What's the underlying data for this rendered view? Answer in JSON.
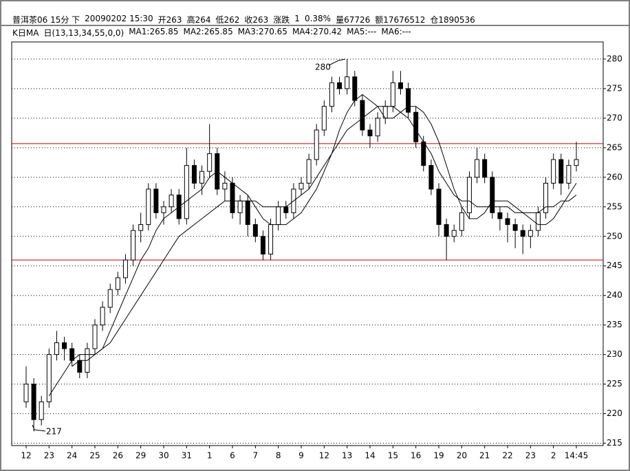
{
  "header": {
    "line1": [
      "普洱茶06 15分 下",
      "20090202 15:30",
      "开263",
      "高264",
      "低262",
      "收263",
      "涨跌",
      "1",
      "0.38%",
      "量67726",
      "额17676512",
      "仓1890536"
    ],
    "line2": [
      "K日MA",
      "日(13,13,34,55,0,0)",
      "MA1:265.85",
      "MA2:265.85",
      "MA3:270.65",
      "MA4:270.42",
      "MA5:---",
      "MA6:---"
    ]
  },
  "chart_data": {
    "type": "candlestick",
    "categories": [
      "12",
      null,
      null,
      "23",
      null,
      null,
      "24",
      null,
      null,
      "25",
      null,
      null,
      "26",
      null,
      null,
      "29",
      null,
      null,
      "30",
      null,
      null,
      "31",
      null,
      null,
      "1",
      null,
      null,
      "6",
      null,
      null,
      "7",
      null,
      null,
      "8",
      null,
      null,
      "9",
      null,
      null,
      "12",
      null,
      null,
      "13",
      null,
      null,
      "14",
      null,
      null,
      "15",
      null,
      null,
      "16",
      null,
      null,
      "19",
      null,
      null,
      "20",
      null,
      null,
      "21",
      null,
      null,
      "22",
      null,
      null,
      "23",
      null,
      null,
      "2",
      null,
      null,
      "14:45"
    ],
    "ohlc": [
      [
        222,
        228,
        221,
        225
      ],
      [
        225,
        226,
        217,
        219
      ],
      [
        219,
        223,
        218,
        222
      ],
      [
        222,
        231,
        221,
        230
      ],
      [
        230,
        234,
        229,
        232
      ],
      [
        232,
        233,
        229,
        231
      ],
      [
        231,
        232,
        228,
        229
      ],
      [
        229,
        230,
        226,
        227
      ],
      [
        227,
        232,
        226,
        231
      ],
      [
        231,
        236,
        230,
        235
      ],
      [
        235,
        239,
        234,
        238
      ],
      [
        238,
        242,
        237,
        241
      ],
      [
        241,
        244,
        240,
        243
      ],
      [
        243,
        247,
        242,
        246
      ],
      [
        246,
        252,
        245,
        251
      ],
      [
        251,
        254,
        249,
        252
      ],
      [
        252,
        259,
        251,
        258
      ],
      [
        258,
        259,
        253,
        254
      ],
      [
        254,
        256,
        252,
        255
      ],
      [
        255,
        258,
        254,
        257
      ],
      [
        257,
        258,
        252,
        253
      ],
      [
        253,
        265,
        252,
        262
      ],
      [
        262,
        263,
        258,
        259
      ],
      [
        259,
        262,
        257,
        261
      ],
      [
        261,
        269,
        260,
        264
      ],
      [
        264,
        265,
        257,
        258
      ],
      [
        258,
        261,
        256,
        259
      ],
      [
        259,
        260,
        253,
        254
      ],
      [
        254,
        257,
        252,
        256
      ],
      [
        256,
        257,
        250,
        252
      ],
      [
        252,
        253,
        249,
        250
      ],
      [
        250,
        251,
        246,
        247
      ],
      [
        247,
        253,
        246,
        252
      ],
      [
        252,
        256,
        251,
        255
      ],
      [
        255,
        256,
        253,
        254
      ],
      [
        254,
        259,
        253,
        258
      ],
      [
        258,
        260,
        257,
        259
      ],
      [
        259,
        264,
        258,
        263
      ],
      [
        263,
        269,
        262,
        268
      ],
      [
        268,
        273,
        267,
        272
      ],
      [
        272,
        277,
        271,
        276
      ],
      [
        276,
        277,
        274,
        275
      ],
      [
        275,
        280,
        274,
        277
      ],
      [
        277,
        278,
        272,
        273
      ],
      [
        273,
        274,
        267,
        268
      ],
      [
        268,
        269,
        265,
        267
      ],
      [
        267,
        271,
        266,
        270
      ],
      [
        270,
        273,
        269,
        272
      ],
      [
        272,
        278,
        271,
        276
      ],
      [
        276,
        278,
        274,
        275
      ],
      [
        275,
        276,
        270,
        271
      ],
      [
        271,
        272,
        265,
        266
      ],
      [
        266,
        267,
        261,
        262
      ],
      [
        262,
        263,
        257,
        258
      ],
      [
        258,
        259,
        250,
        252
      ],
      [
        252,
        253,
        246,
        250
      ],
      [
        250,
        252,
        249,
        251
      ],
      [
        251,
        255,
        250,
        254
      ],
      [
        254,
        261,
        253,
        260
      ],
      [
        260,
        265,
        259,
        263
      ],
      [
        263,
        264,
        259,
        260
      ],
      [
        260,
        261,
        253,
        254
      ],
      [
        254,
        255,
        251,
        253
      ],
      [
        253,
        254,
        249,
        252
      ],
      [
        252,
        253,
        248,
        251
      ],
      [
        251,
        252,
        247,
        250
      ],
      [
        250,
        252,
        248,
        251
      ],
      [
        251,
        255,
        250,
        254
      ],
      [
        254,
        260,
        253,
        259
      ],
      [
        259,
        264,
        258,
        263
      ],
      [
        263,
        264,
        257,
        259
      ],
      [
        259,
        263,
        258,
        262
      ],
      [
        262,
        266,
        261,
        263
      ]
    ],
    "up_color": "#ffffff",
    "down_color": "#000000",
    "edge_color": "#000000",
    "ma_lines": [
      {
        "color": "#000000",
        "values": [
          null,
          null,
          null,
          223,
          225,
          227,
          229,
          230,
          230,
          230,
          231,
          234,
          237,
          240,
          243,
          246,
          248,
          251,
          253,
          254,
          255,
          256,
          257,
          258,
          260,
          261,
          260,
          259,
          258,
          257,
          255,
          253,
          252,
          252,
          252,
          253,
          254,
          256,
          258,
          261,
          264,
          268,
          271,
          273,
          274,
          273,
          272,
          270,
          270,
          271,
          272,
          272,
          271,
          269,
          266,
          262,
          258,
          255,
          253,
          253,
          254,
          256,
          256,
          256,
          255,
          254,
          253,
          252,
          252,
          253,
          255,
          257,
          259
        ]
      },
      {
        "color": "#000000",
        "values": [
          null,
          null,
          null,
          null,
          null,
          null,
          228,
          229,
          229,
          230,
          231,
          232,
          234,
          236,
          238,
          240,
          242,
          244,
          246,
          248,
          250,
          251,
          252,
          253,
          254,
          255,
          256,
          256,
          256,
          256,
          256,
          255,
          255,
          255,
          255,
          256,
          257,
          258,
          260,
          262,
          264,
          266,
          268,
          269,
          270,
          271,
          272,
          272,
          272,
          271,
          270,
          268,
          266,
          264,
          261,
          259,
          257,
          256,
          256,
          255,
          255,
          255,
          255,
          255,
          254,
          254,
          254,
          254,
          255,
          255,
          256,
          256,
          257
        ]
      }
    ],
    "ref_lines": [
      265.7,
      246
    ],
    "ref_color": "#c00000",
    "annotations": [
      "280",
      "217"
    ],
    "ylim": [
      214.6,
      282.9
    ],
    "yticks": [
      215,
      220,
      225,
      230,
      235,
      240,
      245,
      250,
      255,
      260,
      265,
      270,
      275,
      280
    ],
    "grid": true
  }
}
